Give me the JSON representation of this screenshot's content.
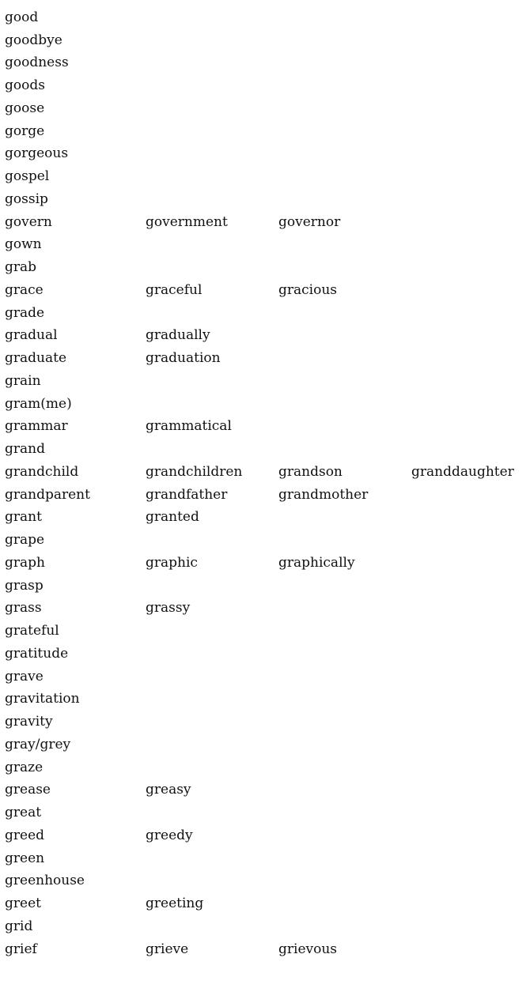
{
  "rows": [
    [
      "good"
    ],
    [
      "goodbye"
    ],
    [
      "goodness"
    ],
    [
      "goods"
    ],
    [
      "goose"
    ],
    [
      "gorge"
    ],
    [
      "gorgeous"
    ],
    [
      "gospel"
    ],
    [
      "gossip"
    ],
    [
      "govern",
      "government",
      "governor"
    ],
    [
      "gown"
    ],
    [
      "grab"
    ],
    [
      "grace",
      "graceful",
      "gracious"
    ],
    [
      "grade"
    ],
    [
      "gradual",
      "gradually"
    ],
    [
      "graduate",
      "graduation"
    ],
    [
      "grain"
    ],
    [
      "gram(me)"
    ],
    [
      "grammar",
      "grammatical"
    ],
    [
      "grand"
    ],
    [
      "grandchild",
      "grandchildren",
      "grandson",
      "granddaughter"
    ],
    [
      "grandparent",
      "grandfather",
      "grandmother"
    ],
    [
      "grant",
      "granted"
    ],
    [
      "grape"
    ],
    [
      "graph",
      "graphic",
      "graphically"
    ],
    [
      "grasp"
    ],
    [
      "grass",
      "grassy"
    ],
    [
      "grateful"
    ],
    [
      "gratitude"
    ],
    [
      "grave"
    ],
    [
      "gravitation"
    ],
    [
      "gravity"
    ],
    [
      "gray/grey"
    ],
    [
      "graze"
    ],
    [
      "grease",
      "greasy"
    ],
    [
      "great"
    ],
    [
      "greed",
      "greedy"
    ],
    [
      "green"
    ],
    [
      "greenhouse"
    ],
    [
      "greet",
      "greeting"
    ],
    [
      "grid"
    ],
    [
      "grief",
      "grieve",
      "grievous"
    ]
  ]
}
